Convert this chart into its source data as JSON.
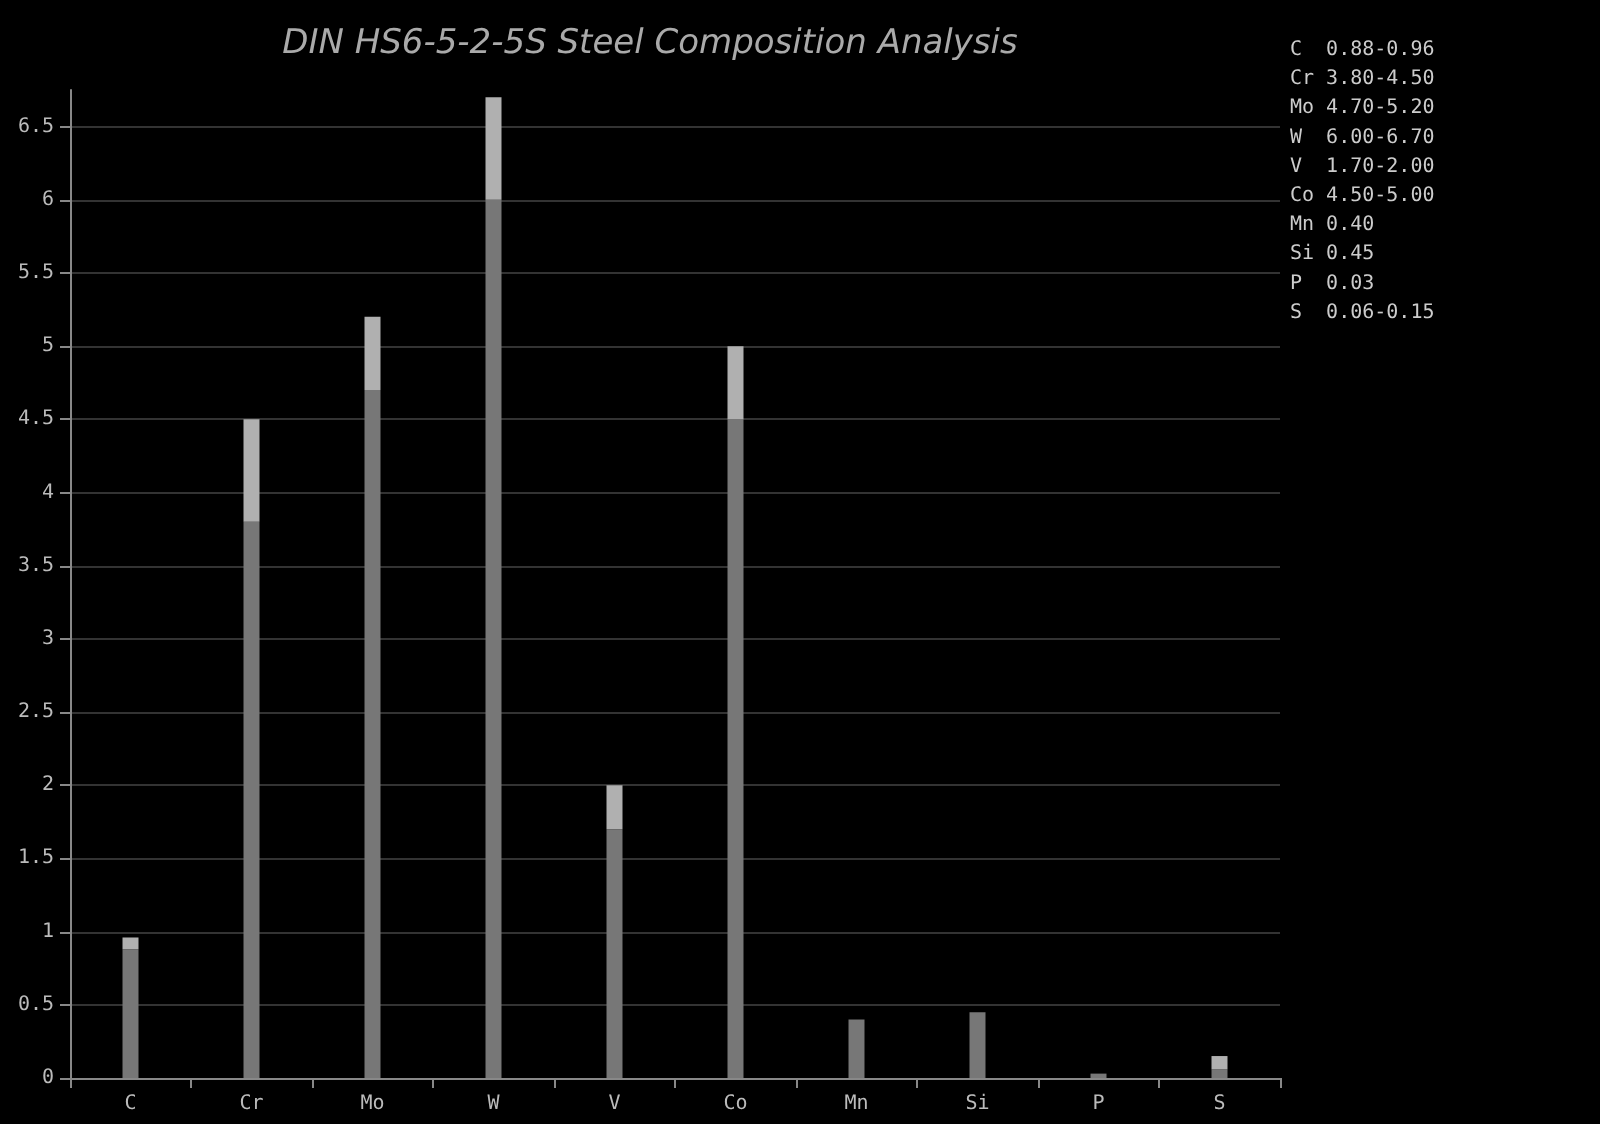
{
  "chart_data": {
    "type": "bar",
    "title": "DIN HS6-5-2-5S Steel Composition Analysis",
    "stacked": true,
    "categories": [
      "C",
      "Cr",
      "Mo",
      "W",
      "V",
      "Co",
      "Mn",
      "Si",
      "P",
      "S"
    ],
    "series": [
      {
        "color": "#777777",
        "values": [
          0.88,
          3.8,
          4.7,
          6.0,
          1.7,
          4.5,
          0.4,
          0.45,
          0.03,
          0.06
        ]
      },
      {
        "color": "#b0b0b0",
        "values": [
          0.08,
          0.7,
          0.5,
          0.7,
          0.3,
          0.5,
          0,
          0,
          0,
          0.09
        ]
      }
    ],
    "ylim": [
      0,
      6.75
    ],
    "yticks": [
      0,
      0.5,
      1,
      1.5,
      2,
      2.5,
      3,
      3.5,
      4,
      4.5,
      5,
      5.5,
      6,
      6.5
    ],
    "grid": "y",
    "annotations": [
      "C  0.88-0.96",
      "Cr 3.80-4.50",
      "Mo 4.70-5.20",
      "W  6.00-6.70",
      "V  1.70-2.00",
      "Co 4.50-5.00",
      "Mn 0.40",
      "Si 0.45",
      "P  0.03",
      "S  0.06-0.15"
    ]
  }
}
